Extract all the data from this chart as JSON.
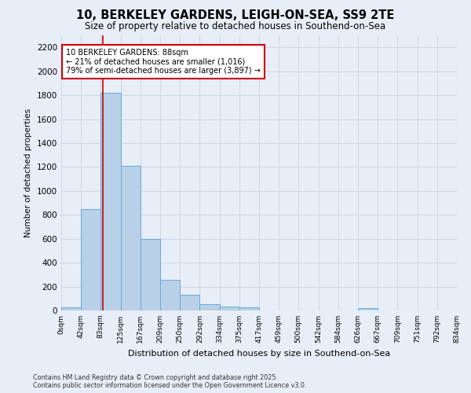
{
  "title": "10, BERKELEY GARDENS, LEIGH-ON-SEA, SS9 2TE",
  "subtitle": "Size of property relative to detached houses in Southend-on-Sea",
  "xlabel": "Distribution of detached houses by size in Southend-on-Sea",
  "ylabel": "Number of detached properties",
  "bin_labels": [
    "0sqm",
    "42sqm",
    "83sqm",
    "125sqm",
    "167sqm",
    "209sqm",
    "250sqm",
    "292sqm",
    "334sqm",
    "375sqm",
    "417sqm",
    "459sqm",
    "500sqm",
    "542sqm",
    "584sqm",
    "626sqm",
    "667sqm",
    "709sqm",
    "751sqm",
    "792sqm",
    "834sqm"
  ],
  "bin_edges": [
    0,
    42,
    83,
    125,
    167,
    209,
    250,
    292,
    334,
    375,
    417,
    459,
    500,
    542,
    584,
    626,
    667,
    709,
    751,
    792,
    834
  ],
  "bar_values": [
    25,
    850,
    1820,
    1210,
    600,
    255,
    130,
    50,
    35,
    25,
    0,
    0,
    0,
    0,
    0,
    18,
    0,
    0,
    0,
    0
  ],
  "bar_color": "#b8d0e8",
  "bar_edge_color": "#6aaad4",
  "property_line_x": 88,
  "property_line_color": "#cc0000",
  "annotation_line1": "10 BERKELEY GARDENS: 88sqm",
  "annotation_line2": "← 21% of detached houses are smaller (1,016)",
  "annotation_line3": "79% of semi-detached houses are larger (3,897) →",
  "annotation_box_color": "#ffffff",
  "annotation_box_edge_color": "#cc0000",
  "ylim": [
    0,
    2300
  ],
  "yticks": [
    0,
    200,
    400,
    600,
    800,
    1000,
    1200,
    1400,
    1600,
    1800,
    2000,
    2200
  ],
  "bg_color": "#e8eef8",
  "grid_color": "#d0d8e8",
  "footer_line1": "Contains HM Land Registry data © Crown copyright and database right 2025.",
  "footer_line2": "Contains public sector information licensed under the Open Government Licence v3.0."
}
